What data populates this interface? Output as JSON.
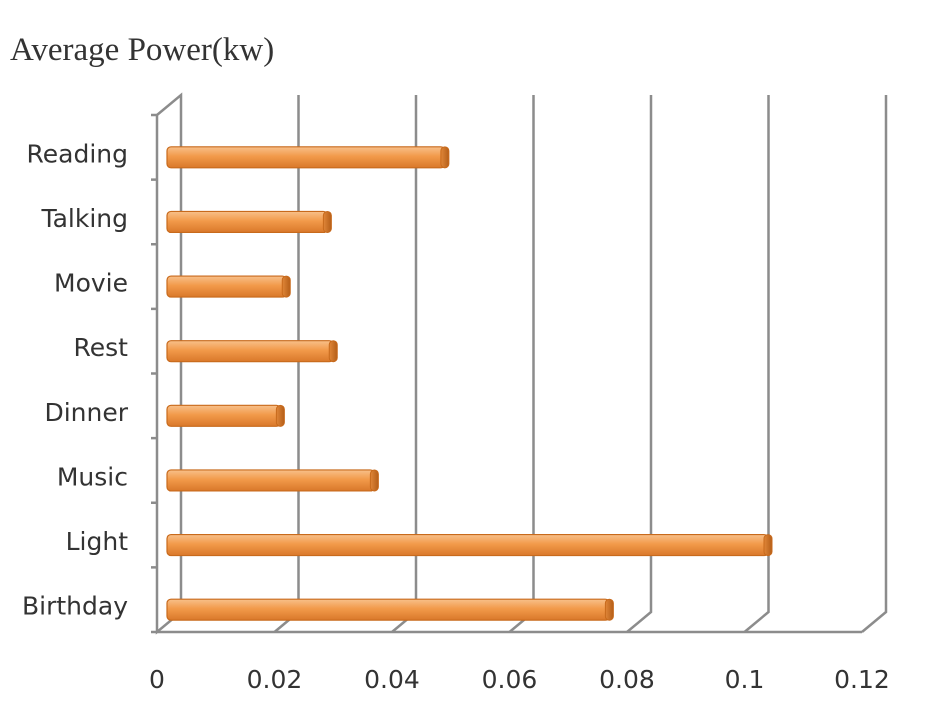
{
  "chart_data": {
    "type": "bar",
    "orientation": "horizontal",
    "title": "Average  Power(kw)",
    "categories": [
      "Reading",
      "Talking",
      "Movie",
      "Rest",
      "Dinner",
      "Music",
      "Light",
      "Birthday"
    ],
    "values": [
      0.049,
      0.029,
      0.022,
      0.03,
      0.021,
      0.037,
      0.104,
      0.077
    ],
    "xlim": [
      0,
      0.12
    ],
    "xticks": [
      "0",
      "0.02",
      "0.04",
      "0.06",
      "0.08",
      "0.1",
      "0.12"
    ],
    "xlabel": "",
    "ylabel": "",
    "grid": true,
    "legend": "none",
    "bar_color": "#f29a4a",
    "bar_edge_color": "#c86a1c"
  }
}
